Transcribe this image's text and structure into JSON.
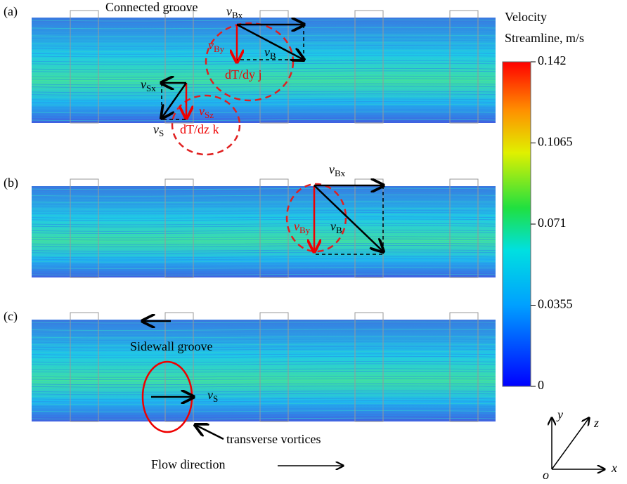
{
  "panels": [
    {
      "label": "(a)",
      "annotations": [
        {
          "text": "Connected groove"
        },
        {
          "main": "v",
          "sub": "Bx"
        },
        {
          "main": "v",
          "sub": "By"
        },
        {
          "main": "v",
          "sub": "B"
        },
        {
          "text": "dT/dy j"
        },
        {
          "main": "v",
          "sub": "Sx"
        },
        {
          "main": "v",
          "sub": "Sz"
        },
        {
          "text": "dT/dz k"
        },
        {
          "main": "v",
          "sub": "S"
        }
      ]
    },
    {
      "label": "(b)",
      "annotations": [
        {
          "main": "v",
          "sub": "Bx"
        },
        {
          "main": "v",
          "sub": "By"
        },
        {
          "main": "v",
          "sub": "B"
        }
      ]
    },
    {
      "label": "(c)",
      "annotations": [
        {
          "text": "Sidewall groove"
        },
        {
          "main": "v",
          "sub": "S"
        },
        {
          "text": "transverse vortices"
        }
      ]
    }
  ],
  "colorbar": {
    "title": [
      "Velocity",
      "Streamline, m/s"
    ],
    "lim": [
      0,
      0.142
    ],
    "ticks": [
      0.142,
      0.1065,
      0.071,
      0.0355,
      0
    ]
  },
  "flow_label": "Flow direction",
  "axes": {
    "origin": "o",
    "x": "x",
    "y": "y",
    "z": "z"
  }
}
